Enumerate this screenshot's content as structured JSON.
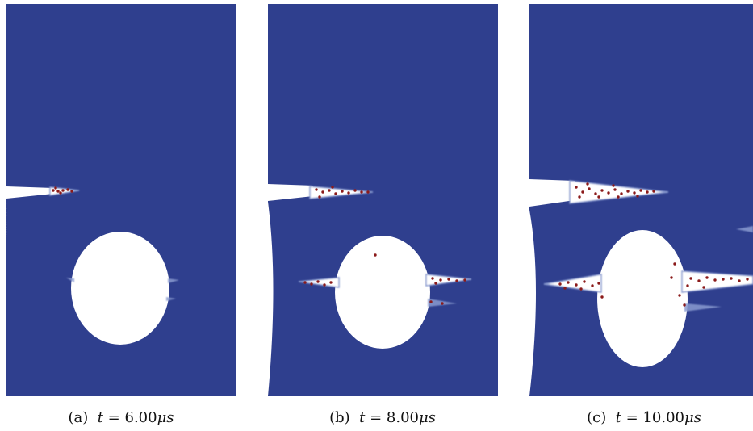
{
  "figure": {
    "panels": [
      {
        "id": "a",
        "label": "(a)",
        "t_prefix": "t = ",
        "t_value": "6.00",
        "unit": "μs"
      },
      {
        "id": "b",
        "label": "(b)",
        "t_prefix": "t = ",
        "t_value": "8.00",
        "unit": "μs"
      },
      {
        "id": "c",
        "label": "(c)",
        "t_prefix": "t = ",
        "t_value": "10.00",
        "unit": "μs"
      }
    ],
    "colors": {
      "material": "#2f3f8e",
      "void": "#ffffff",
      "damage_particle": "#8b1a1a",
      "crack_edge": "#8a9bd0"
    }
  }
}
